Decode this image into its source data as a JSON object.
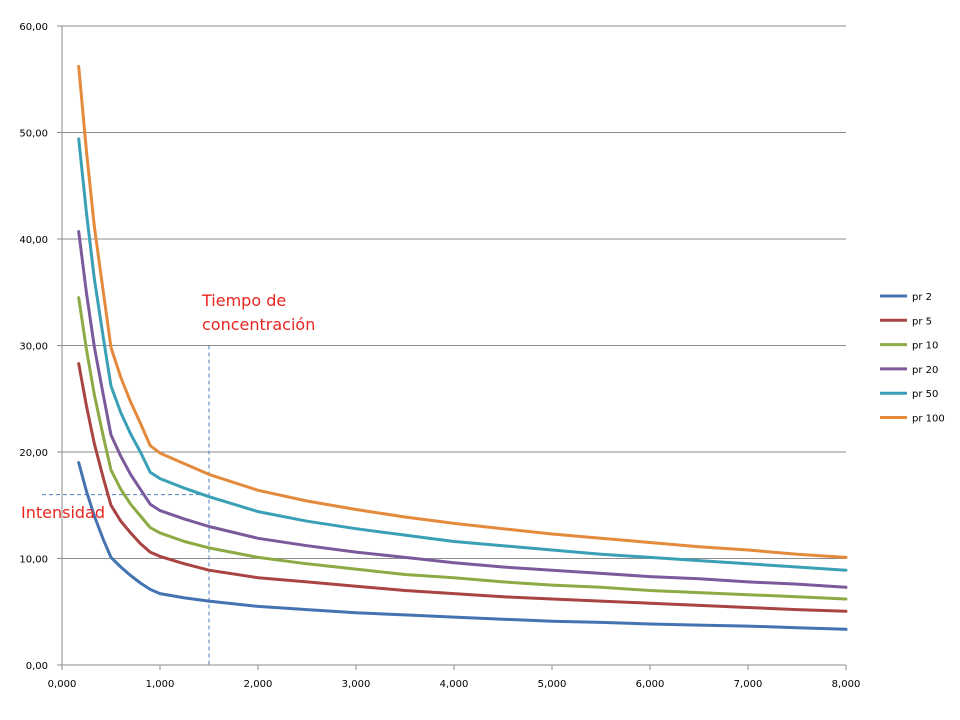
{
  "chart_data": {
    "type": "line",
    "xlim": [
      0,
      8
    ],
    "ylim": [
      0,
      60
    ],
    "x_ticks": [
      "0,000",
      "1,000",
      "2,000",
      "3,000",
      "4,000",
      "5,000",
      "6,000",
      "7,000",
      "8,000"
    ],
    "y_ticks": [
      "0,00",
      "10,00",
      "20,00",
      "30,00",
      "40,00",
      "50,00",
      "60,00"
    ],
    "grid": "horizontal",
    "legend_position": "right",
    "x": [
      0.17,
      0.25,
      0.33,
      0.42,
      0.5,
      0.6,
      0.7,
      0.8,
      0.9,
      1.0,
      1.25,
      1.5,
      2.0,
      2.5,
      3.0,
      3.5,
      4.0,
      4.5,
      5.0,
      5.5,
      6.0,
      6.5,
      7.0,
      7.5,
      8.0
    ],
    "series": [
      {
        "name": "pr 2",
        "color": "#4573b2",
        "values": [
          19.0,
          16.3,
          14.0,
          11.8,
          10.1,
          9.2,
          8.4,
          7.7,
          7.1,
          6.7,
          6.3,
          6.0,
          5.5,
          5.2,
          4.9,
          4.7,
          4.5,
          4.3,
          4.1,
          4.0,
          3.85,
          3.75,
          3.65,
          3.5,
          3.35
        ]
      },
      {
        "name": "pr 5",
        "color": "#a94442",
        "values": [
          28.3,
          24.3,
          20.8,
          17.6,
          15.0,
          13.5,
          12.4,
          11.4,
          10.6,
          10.2,
          9.5,
          8.9,
          8.2,
          7.8,
          7.4,
          7.0,
          6.7,
          6.4,
          6.2,
          6.0,
          5.8,
          5.6,
          5.4,
          5.2,
          5.05
        ]
      },
      {
        "name": "pr 10",
        "color": "#8cab45",
        "values": [
          34.5,
          29.6,
          25.4,
          21.5,
          18.3,
          16.5,
          15.1,
          14.0,
          12.9,
          12.4,
          11.6,
          11.0,
          10.1,
          9.5,
          9.0,
          8.5,
          8.2,
          7.8,
          7.5,
          7.3,
          7.0,
          6.8,
          6.6,
          6.4,
          6.2
        ]
      },
      {
        "name": "pr 20",
        "color": "#7b5a9c",
        "values": [
          40.7,
          34.9,
          29.9,
          25.4,
          21.6,
          19.6,
          17.9,
          16.5,
          15.1,
          14.5,
          13.7,
          13.0,
          11.9,
          11.2,
          10.6,
          10.1,
          9.6,
          9.2,
          8.9,
          8.6,
          8.3,
          8.1,
          7.8,
          7.6,
          7.3
        ]
      },
      {
        "name": "pr 50",
        "color": "#3aa0b6",
        "values": [
          49.4,
          42.4,
          36.3,
          30.8,
          26.2,
          23.7,
          21.7,
          20.0,
          18.1,
          17.5,
          16.6,
          15.8,
          14.4,
          13.5,
          12.8,
          12.2,
          11.6,
          11.2,
          10.8,
          10.4,
          10.1,
          9.8,
          9.5,
          9.2,
          8.9
        ]
      },
      {
        "name": "pr 100",
        "color": "#e38a3c",
        "values": [
          56.2,
          48.2,
          41.2,
          35.1,
          29.8,
          27.0,
          24.7,
          22.7,
          20.6,
          19.9,
          18.9,
          17.9,
          16.4,
          15.4,
          14.6,
          13.9,
          13.3,
          12.8,
          12.3,
          11.9,
          11.5,
          11.1,
          10.8,
          10.4,
          10.1
        ]
      }
    ],
    "annotations": [
      {
        "text_lines": [
          "Tiempo de",
          "concentración"
        ],
        "color": "#e8251f",
        "x_marker": 1.5,
        "y_top": 30
      },
      {
        "text": "Intensidad",
        "color": "#e8251f",
        "y_marker": 16
      }
    ]
  }
}
